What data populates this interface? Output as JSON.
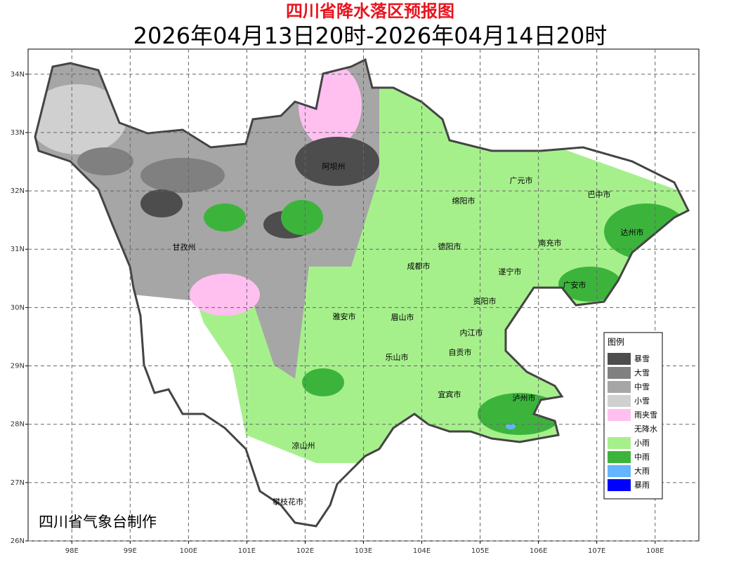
{
  "map": {
    "title": "四川省降水落区预报图",
    "subtitle": "2026年04月13日20时-2026年04月14日20时",
    "credit": "四川省气象台制作",
    "xlim": [
      97.25,
      108.75
    ],
    "ylim": [
      26,
      34.43
    ],
    "xticks": [
      {
        "value": 98,
        "label": "98E"
      },
      {
        "value": 99,
        "label": "99E"
      },
      {
        "value": 100,
        "label": "100E"
      },
      {
        "value": 101,
        "label": "101E"
      },
      {
        "value": 102,
        "label": "102E"
      },
      {
        "value": 103,
        "label": "103E"
      },
      {
        "value": 104,
        "label": "104E"
      },
      {
        "value": 105,
        "label": "105E"
      },
      {
        "value": 106,
        "label": "106E"
      },
      {
        "value": 107,
        "label": "107E"
      },
      {
        "value": 108,
        "label": "108E"
      }
    ],
    "yticks": [
      {
        "value": 26,
        "label": "26N"
      },
      {
        "value": 27,
        "label": "27N"
      },
      {
        "value": 28,
        "label": "28N"
      },
      {
        "value": 29,
        "label": "29N"
      },
      {
        "value": 30,
        "label": "30N"
      },
      {
        "value": 31,
        "label": "31N"
      },
      {
        "value": 32,
        "label": "32N"
      },
      {
        "value": 33,
        "label": "33N"
      },
      {
        "value": 34,
        "label": "34N"
      }
    ],
    "grid": true,
    "cities": [
      "阿坝州",
      "广元市",
      "巴中市",
      "绵阳市",
      "达州市",
      "甘孜州",
      "德阳市",
      "南充市",
      "成都市",
      "遂宁市",
      "广安市",
      "资阳市",
      "雅安市",
      "眉山市",
      "内江市",
      "自贡市",
      "乐山市",
      "宜宾市",
      "泸州市",
      "凉山州",
      "攀枝花市"
    ],
    "legend": {
      "title": "图例",
      "items": [
        {
          "label": "暴雪",
          "color": "#4d4d4d"
        },
        {
          "label": "大雪",
          "color": "#808080"
        },
        {
          "label": "中雪",
          "color": "#a6a6a6"
        },
        {
          "label": "小雪",
          "color": "#d0d0d0"
        },
        {
          "label": "雨夹雪",
          "color": "#ffc0f0"
        },
        {
          "label": "无降水",
          "color": "#ffffff"
        },
        {
          "label": "小雨",
          "color": "#a6f08c"
        },
        {
          "label": "中雨",
          "color": "#3cb43c"
        },
        {
          "label": "大雨",
          "color": "#64b4ff"
        },
        {
          "label": "暴雨",
          "color": "#0000ff"
        }
      ]
    }
  }
}
